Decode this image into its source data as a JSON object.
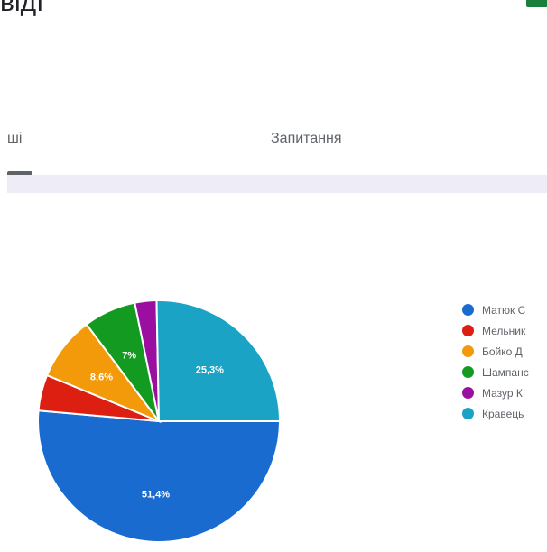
{
  "header": {
    "title": "відї"
  },
  "tabs": [
    {
      "label": "ші",
      "active": true
    },
    {
      "label": "Запитання",
      "active": false
    }
  ],
  "chart_data": {
    "type": "pie",
    "slices": [
      {
        "name": "Матюк С",
        "value": 51.4,
        "label": "51,4%",
        "color": "#1a6bd0"
      },
      {
        "name": "Мельник",
        "value": 4.8,
        "label": "",
        "color": "#dd1f12"
      },
      {
        "name": "Бойко Д",
        "value": 8.6,
        "label": "8,6%",
        "color": "#f39a0a"
      },
      {
        "name": "Шампанс",
        "value": 7.0,
        "label": "7%",
        "color": "#129a21"
      },
      {
        "name": "Мазур К",
        "value": 2.9,
        "label": "",
        "color": "#9a0ea0"
      },
      {
        "name": "Кравець",
        "value": 25.3,
        "label": "25,3%",
        "color": "#1ba3c6"
      }
    ],
    "legend_position": "right"
  }
}
